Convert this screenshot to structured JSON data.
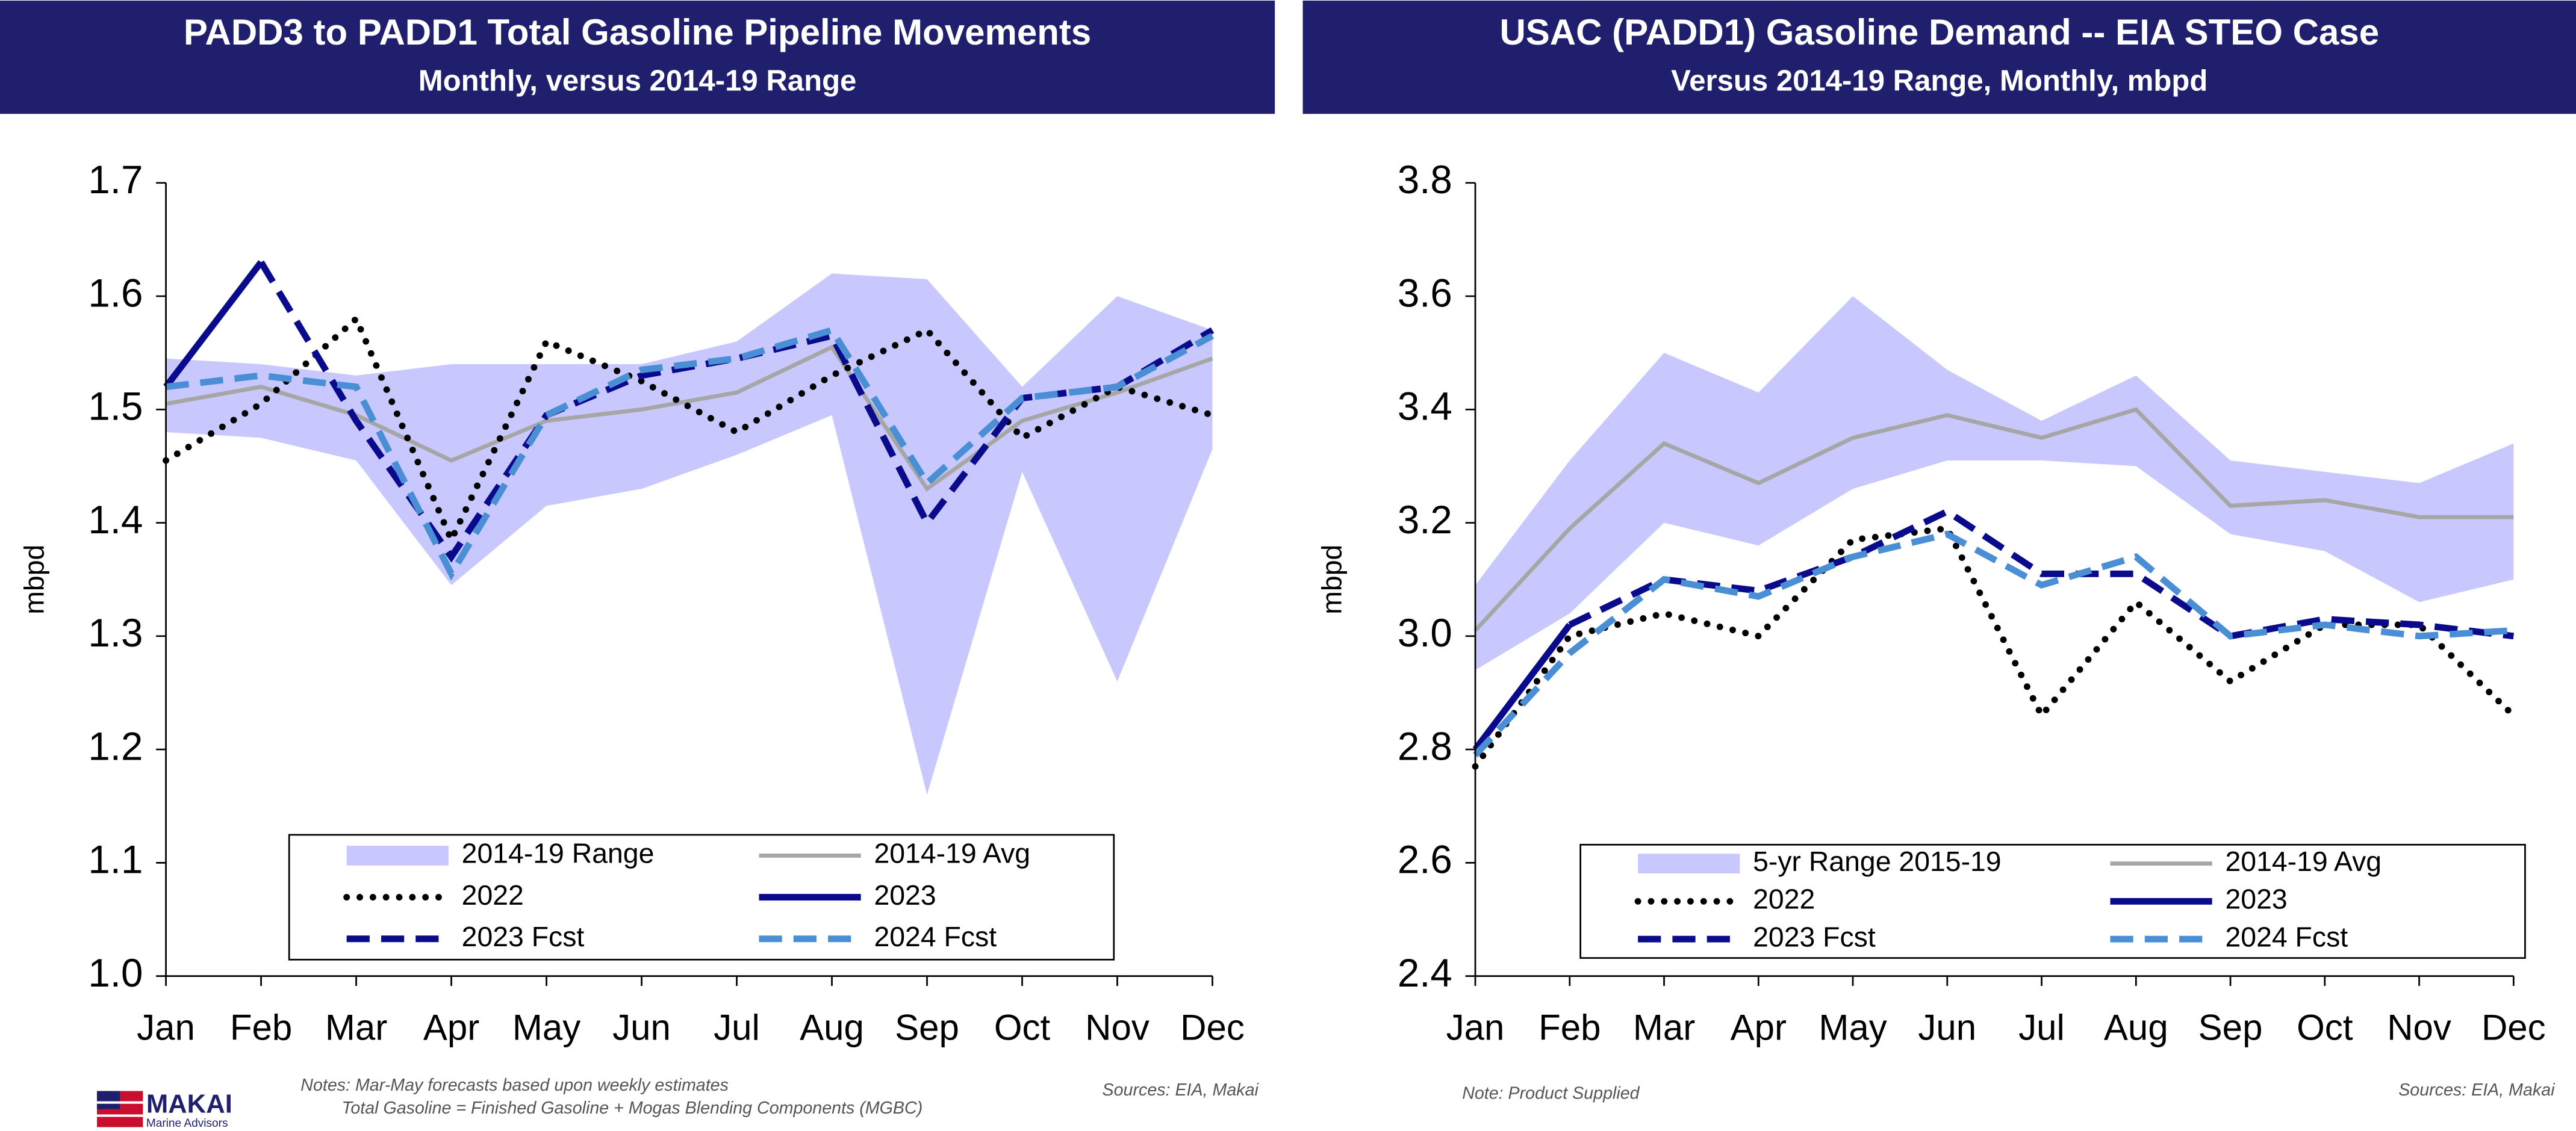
{
  "chart_data": [
    {
      "type": "line",
      "title": "PADD3 to PADD1 Total Gasoline Pipeline Movements",
      "subtitle": "Monthly, versus 2014-19 Range",
      "y_label": "mbpd",
      "categories": [
        "Jan",
        "Feb",
        "Mar",
        "Apr",
        "May",
        "Jun",
        "Jul",
        "Aug",
        "Sep",
        "Oct",
        "Nov",
        "Dec"
      ],
      "ylim": [
        1.0,
        1.7
      ],
      "yticks": [
        {
          "value": 1.0,
          "label": "1.0"
        },
        1.1,
        1.2,
        1.3,
        1.4,
        1.5,
        1.6,
        1.7
      ],
      "series": [
        {
          "name": "2014-19 Range",
          "color": "#c8c8ff",
          "style": "band",
          "high": [
            1.545,
            1.54,
            1.53,
            1.54,
            1.54,
            1.54,
            1.56,
            1.62,
            1.615,
            1.52,
            1.6,
            1.57
          ],
          "low": [
            1.48,
            1.475,
            1.455,
            1.345,
            1.415,
            1.43,
            1.46,
            1.495,
            1.16,
            1.445,
            1.26,
            1.465
          ]
        },
        {
          "name": "2014-19 Avg",
          "color": "#a6a6a6",
          "style": "solid",
          "values": [
            1.505,
            1.52,
            1.495,
            1.455,
            1.49,
            1.5,
            1.515,
            1.555,
            1.43,
            1.49,
            1.515,
            1.545
          ]
        },
        {
          "name": "2022",
          "color": "#000000",
          "style": "dotted",
          "values": [
            1.455,
            1.505,
            1.58,
            1.385,
            1.56,
            1.525,
            1.48,
            1.53,
            1.57,
            1.475,
            1.52,
            1.495
          ]
        },
        {
          "name": "2023",
          "color": "#0a0a8c",
          "style": "solid",
          "values": [
            1.52,
            1.63,
            null,
            null,
            null,
            null,
            null,
            null,
            null,
            null,
            null,
            null
          ]
        },
        {
          "name": "2023 Fcst",
          "color": "#0a0a8c",
          "style": "dashed",
          "values": [
            null,
            1.63,
            1.49,
            1.37,
            1.495,
            1.53,
            1.545,
            1.565,
            1.4,
            1.51,
            1.52,
            1.57
          ]
        },
        {
          "name": "2024 Fcst",
          "color": "#4a8fd6",
          "style": "dashed",
          "values": [
            1.52,
            1.53,
            1.52,
            1.355,
            1.495,
            1.535,
            1.545,
            1.57,
            1.435,
            1.51,
            1.52,
            1.565
          ]
        }
      ],
      "notes": [
        "Notes: Mar-May forecasts based upon weekly estimates",
        "Total Gasoline = Finished Gasoline + Mogas Blending Components (MGBC)"
      ],
      "source": "Sources: EIA, Makai"
    },
    {
      "type": "line",
      "title": "USAC (PADD1) Gasoline Demand -- EIA STEO Case",
      "subtitle": "Versus 2014-19 Range, Monthly, mbpd",
      "y_label": "mbpd",
      "categories": [
        "Jan",
        "Feb",
        "Mar",
        "Apr",
        "May",
        "Jun",
        "Jul",
        "Aug",
        "Sep",
        "Oct",
        "Nov",
        "Dec"
      ],
      "ylim": [
        2.4,
        3.8
      ],
      "yticks": [
        2.4,
        2.6,
        2.8,
        {
          "value": 3.0,
          "label": "3.0"
        },
        3.2,
        3.4,
        3.6,
        3.8
      ],
      "series": [
        {
          "name": "5-yr Range 2015-19",
          "color": "#c8c8ff",
          "style": "band",
          "high": [
            3.09,
            3.31,
            3.5,
            3.43,
            3.6,
            3.47,
            3.38,
            3.46,
            3.31,
            3.29,
            3.27,
            3.34
          ],
          "low": [
            2.94,
            3.04,
            3.2,
            3.16,
            3.26,
            3.31,
            3.31,
            3.3,
            3.18,
            3.15,
            3.06,
            3.1
          ]
        },
        {
          "name": "2014-19 Avg",
          "color": "#a6a6a6",
          "style": "solid",
          "values": [
            3.01,
            3.19,
            3.34,
            3.27,
            3.35,
            3.39,
            3.35,
            3.4,
            3.23,
            3.24,
            3.21,
            3.21
          ]
        },
        {
          "name": "2022",
          "color": "#000000",
          "style": "dotted",
          "values": [
            2.77,
            3.0,
            3.04,
            3.0,
            3.17,
            3.19,
            2.86,
            3.06,
            2.92,
            3.02,
            3.02,
            2.86
          ]
        },
        {
          "name": "2023",
          "color": "#0a0a8c",
          "style": "solid",
          "values": [
            2.8,
            3.02,
            null,
            null,
            null,
            null,
            null,
            null,
            null,
            null,
            null,
            null
          ]
        },
        {
          "name": "2023 Fcst",
          "color": "#0a0a8c",
          "style": "dashed",
          "values": [
            null,
            3.02,
            3.1,
            3.08,
            3.14,
            3.22,
            3.11,
            3.11,
            3.0,
            3.03,
            3.02,
            3.0
          ]
        },
        {
          "name": "2024 Fcst",
          "color": "#4a8fd6",
          "style": "dashed",
          "values": [
            2.79,
            2.97,
            3.1,
            3.07,
            3.14,
            3.18,
            3.09,
            3.14,
            3.0,
            3.02,
            3.0,
            3.01
          ]
        }
      ],
      "notes": [
        "Note: Product Supplied"
      ],
      "source": "Sources: EIA, Makai"
    }
  ],
  "logo": {
    "name": "MAKAI",
    "tagline": "Marine Advisors"
  }
}
